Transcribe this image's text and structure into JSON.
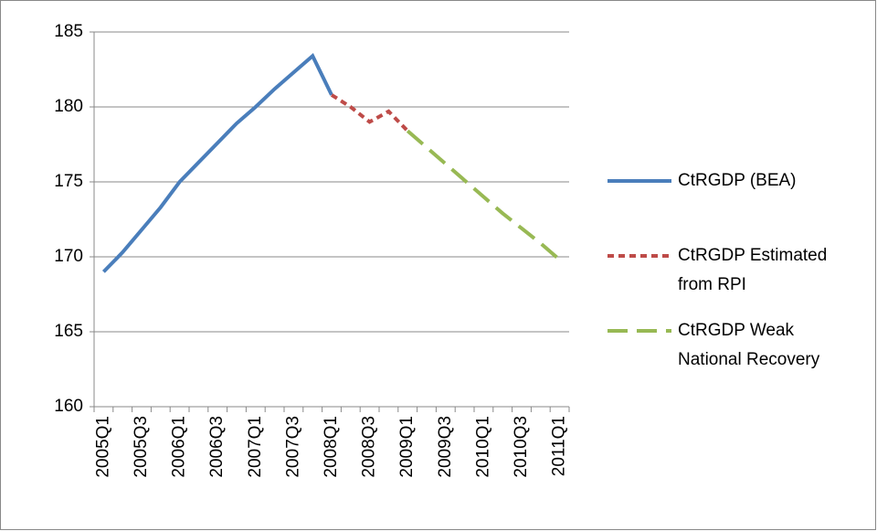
{
  "chart_data": {
    "type": "line",
    "categories": [
      "2005Q1",
      null,
      "2005Q3",
      null,
      "2006Q1",
      null,
      "2006Q3",
      null,
      "2007Q1",
      null,
      "2007Q3",
      null,
      "2008Q1",
      null,
      "2008Q3",
      null,
      "2009Q1",
      null,
      "2009Q3",
      null,
      "2010Q1",
      null,
      "2010Q3",
      null,
      "2011Q1"
    ],
    "series": [
      {
        "name": "CtRGDP (BEA)",
        "color": "#4a7ebb",
        "dash": "solid",
        "values": [
          169.0,
          170.3,
          171.8,
          173.3,
          175.0,
          176.3,
          177.6,
          178.9,
          180.0,
          181.2,
          182.3,
          183.4,
          180.8,
          null,
          null,
          null,
          null,
          null,
          null,
          null,
          null,
          null,
          null,
          null,
          null
        ]
      },
      {
        "name": "CtRGDP Estimated from RPI",
        "color": "#be4b48",
        "dash": "short",
        "values": [
          null,
          null,
          null,
          null,
          null,
          null,
          null,
          null,
          null,
          null,
          null,
          null,
          180.8,
          180.0,
          179.0,
          179.7,
          178.4,
          null,
          null,
          null,
          null,
          null,
          null,
          null,
          null
        ]
      },
      {
        "name": "CtRGDP Weak National Recovery",
        "color": "#98b954",
        "dash": "long",
        "values": [
          null,
          null,
          null,
          null,
          null,
          null,
          null,
          null,
          null,
          null,
          null,
          null,
          null,
          null,
          null,
          null,
          178.4,
          177.3,
          176.2,
          175.1,
          174.0,
          172.9,
          171.9,
          170.9,
          169.8
        ]
      }
    ],
    "ylim": [
      160,
      185
    ],
    "yticks": [
      160,
      165,
      170,
      175,
      180,
      185
    ],
    "grid": true
  }
}
